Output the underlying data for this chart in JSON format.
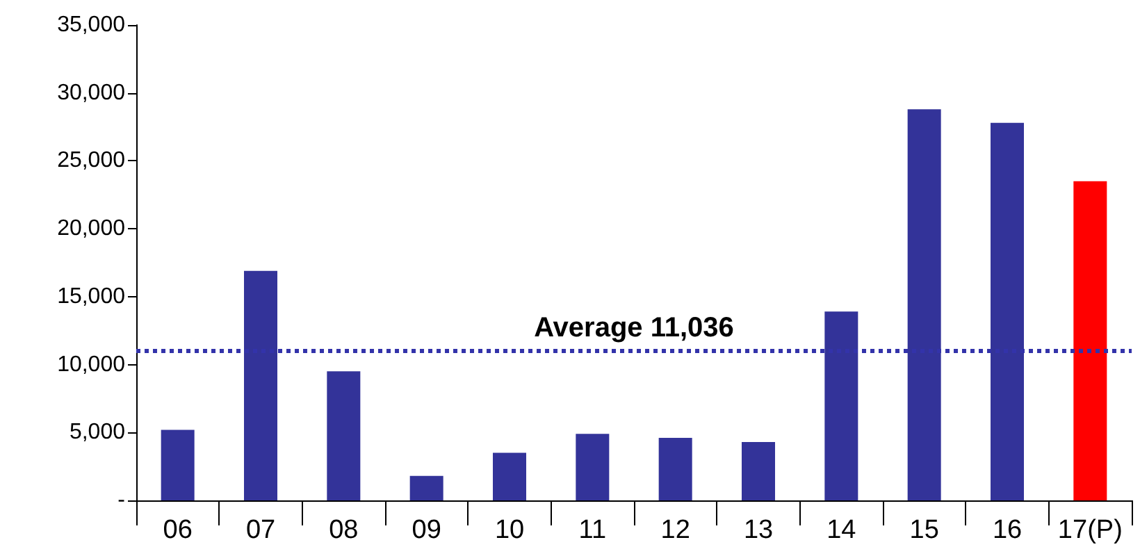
{
  "chart_data": {
    "type": "bar",
    "categories": [
      "06",
      "07",
      "08",
      "09",
      "10",
      "11",
      "12",
      "13",
      "14",
      "15",
      "16",
      "17(P)"
    ],
    "values": [
      5200,
      16900,
      9500,
      1800,
      3500,
      4900,
      4600,
      4300,
      13900,
      28800,
      27800,
      23500
    ],
    "colors": [
      "#333399",
      "#333399",
      "#333399",
      "#333399",
      "#333399",
      "#333399",
      "#333399",
      "#333399",
      "#333399",
      "#333399",
      "#333399",
      "#ff0000"
    ],
    "ylim": [
      0,
      35000
    ],
    "yticks": [
      {
        "value": 0,
        "label": "-"
      },
      {
        "value": 5000,
        "label": "5,000"
      },
      {
        "value": 10000,
        "label": "10,000"
      },
      {
        "value": 15000,
        "label": "15,000"
      },
      {
        "value": 20000,
        "label": "20,000"
      },
      {
        "value": 25000,
        "label": "25,000"
      },
      {
        "value": 30000,
        "label": "30,000"
      },
      {
        "value": 35000,
        "label": "35,000"
      }
    ],
    "ref_lines": [
      {
        "axis": "y",
        "value": 11036,
        "label": "Average 11,036",
        "color": "#3333aa",
        "line_style": "dotted"
      }
    ],
    "grid": false
  }
}
